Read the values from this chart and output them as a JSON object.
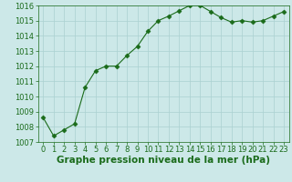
{
  "x": [
    0,
    1,
    2,
    3,
    4,
    5,
    6,
    7,
    8,
    9,
    10,
    11,
    12,
    13,
    14,
    15,
    16,
    17,
    18,
    19,
    20,
    21,
    22,
    23
  ],
  "y": [
    1008.6,
    1007.4,
    1007.8,
    1008.2,
    1010.6,
    1011.7,
    1012.0,
    1012.0,
    1012.7,
    1013.3,
    1014.3,
    1015.0,
    1015.3,
    1015.65,
    1016.0,
    1016.0,
    1015.6,
    1015.2,
    1014.9,
    1015.0,
    1014.9,
    1015.0,
    1015.3,
    1015.6
  ],
  "xlim": [
    -0.5,
    23.5
  ],
  "ylim": [
    1007,
    1016
  ],
  "yticks": [
    1007,
    1008,
    1009,
    1010,
    1011,
    1012,
    1013,
    1014,
    1015,
    1016
  ],
  "xticks": [
    0,
    1,
    2,
    3,
    4,
    5,
    6,
    7,
    8,
    9,
    10,
    11,
    12,
    13,
    14,
    15,
    16,
    17,
    18,
    19,
    20,
    21,
    22,
    23
  ],
  "line_color": "#1a6b1a",
  "marker": "D",
  "marker_size": 2.5,
  "bg_color": "#cce8e8",
  "grid_color": "#aad0d0",
  "xlabel": "Graphe pression niveau de la mer (hPa)",
  "xlabel_fontsize": 7.5,
  "tick_fontsize": 6,
  "tick_color": "#1a6b1a",
  "axis_color": "#1a6b1a"
}
